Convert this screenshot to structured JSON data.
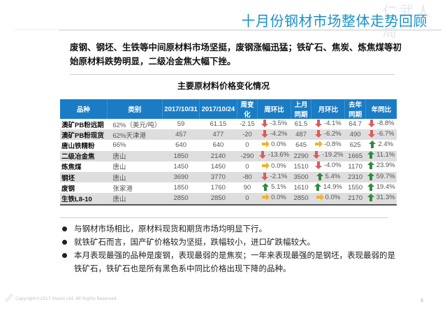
{
  "slide": {
    "title": "十月份钢材市场整体走势回顾",
    "watermark": "仁武人局",
    "summary": "废钢、钢坯、生铁等中间原材料市场坚挺，废钢涨幅迅猛；铁矿石、焦炭、炼焦煤等初始原材料跌势明显，二级冶金焦大幅下挫。",
    "table_caption": "主要原材料价格变化情况",
    "footer": "Copyright©2017 Steelx Ltd. All Rights Reserved.",
    "page_number": "6"
  },
  "colors": {
    "title": "#1a8fc9",
    "header_bg": "#1a7cc4",
    "alt_row": "#dedede",
    "up_arrow": "#2e8b3e",
    "down_arrow": "#e05a5a",
    "flat_arrow": "#f0b429"
  },
  "table": {
    "headers": [
      "品种",
      "类别",
      "2017/10/31",
      "2017/10/24",
      "周变化",
      "周环比",
      "上月同期",
      "月环比",
      "去年同期",
      "年同比"
    ],
    "rows": [
      {
        "name": "澳矿PB粉远期",
        "category": "62%（美元/吨）",
        "p1031": "59",
        "p1024": "61.15",
        "week_change": "-2.15",
        "wow": "-3.5%",
        "wow_dir": "down",
        "last_month": "61.5",
        "mom": "-4.1%",
        "mom_dir": "down",
        "last_year": "64.7",
        "yoy": "-8.8%",
        "yoy_dir": "down"
      },
      {
        "name": "澳矿PB粉现货",
        "category": "62%天津港",
        "p1031": "457",
        "p1024": "477",
        "week_change": "-20",
        "wow": "-4.2%",
        "wow_dir": "down",
        "last_month": "487",
        "mom": "-6.2%",
        "mom_dir": "down",
        "last_year": "490",
        "yoy": "-6.7%",
        "yoy_dir": "down"
      },
      {
        "name": "唐山铁精粉",
        "category": "66%",
        "p1031": "640",
        "p1024": "640",
        "week_change": "0",
        "wow": "0.0%",
        "wow_dir": "flat",
        "last_month": "645",
        "mom": "-0.8%",
        "mom_dir": "flat",
        "last_year": "625",
        "yoy": "2.4%",
        "yoy_dir": "up"
      },
      {
        "name": "二级冶金焦",
        "category": "唐山",
        "p1031": "1850",
        "p1024": "2140",
        "week_change": "-290",
        "wow": "-13.6%",
        "wow_dir": "down",
        "last_month": "2290",
        "mom": "-19.2%",
        "mom_dir": "down",
        "last_year": "1665",
        "yoy": "11.1%",
        "yoy_dir": "up"
      },
      {
        "name": "炼焦煤",
        "category": "唐山",
        "p1031": "1450",
        "p1024": "1450",
        "week_change": "0",
        "wow": "0.0%",
        "wow_dir": "flat",
        "last_month": "1510",
        "mom": "-4.0%",
        "mom_dir": "down",
        "last_year": "1170",
        "yoy": "23.9%",
        "yoy_dir": "up"
      },
      {
        "name": "钢坯",
        "category": "唐山",
        "p1031": "3690",
        "p1024": "3770",
        "week_change": "-80",
        "wow": "-2.1%",
        "wow_dir": "down",
        "last_month": "3500",
        "mom": "5.4%",
        "mom_dir": "up",
        "last_year": "2310",
        "yoy": "59.7%",
        "yoy_dir": "up"
      },
      {
        "name": "废钢",
        "category": "张家港",
        "p1031": "1850",
        "p1024": "1760",
        "week_change": "90",
        "wow": "5.1%",
        "wow_dir": "up",
        "last_month": "1610",
        "mom": "14.9%",
        "mom_dir": "up",
        "last_year": "1550",
        "yoy": "19.4%",
        "yoy_dir": "up"
      },
      {
        "name": "生铁L8-10",
        "category": "唐山",
        "p1031": "2850",
        "p1024": "2850",
        "week_change": "0",
        "wow": "0.0%",
        "wow_dir": "flat",
        "last_month": "2850",
        "mom": "0.0%",
        "mom_dir": "flat",
        "last_year": "2170",
        "yoy": "31.3%",
        "yoy_dir": "up"
      }
    ]
  },
  "bullets": [
    "与钢材市场相比，原材料现货和期货市场均明显下行。",
    "就铁矿石而言，国产矿价格较为坚挺，跌幅较小，进口矿跌幅较大。",
    "本月表现最强的品种是废钢，表现最弱的是焦炭；一年来表现最强的是钢坯，表现最弱的是铁矿石，铁矿石也是所有黑色系中同比价格出现下降的品种。"
  ]
}
